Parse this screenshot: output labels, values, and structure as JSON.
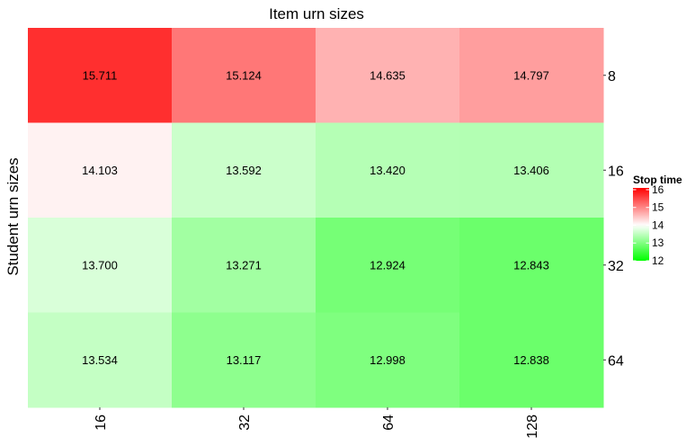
{
  "chart_data": {
    "type": "heatmap",
    "title": "Item urn sizes",
    "xlabel": "",
    "ylabel": "Student urn sizes",
    "x_categories": [
      "16",
      "32",
      "64",
      "128"
    ],
    "y_categories": [
      "8",
      "16",
      "32",
      "64"
    ],
    "values": [
      [
        15.711,
        15.124,
        14.635,
        14.797
      ],
      [
        14.103,
        13.592,
        13.42,
        13.406
      ],
      [
        13.7,
        13.271,
        12.924,
        12.843
      ],
      [
        13.534,
        13.117,
        12.998,
        12.838
      ]
    ],
    "value_labels": [
      [
        "15.711",
        "15.124",
        "14.635",
        "14.797"
      ],
      [
        "14.103",
        "13.592",
        "13.420",
        "13.406"
      ],
      [
        "13.700",
        "13.271",
        "12.924",
        "12.843"
      ],
      [
        "13.534",
        "13.117",
        "12.998",
        "12.838"
      ]
    ],
    "color_scale": {
      "low": "#00ff00",
      "mid": "#ffffff",
      "high": "#ff0000",
      "midpoint": 14,
      "range": [
        12,
        16.1
      ]
    },
    "legend": {
      "title": "Stop time",
      "ticks": [
        "12",
        "13",
        "14",
        "15",
        "16"
      ],
      "position": "right"
    },
    "x_axis_position": "bottom",
    "y_axis_position": "right",
    "grid": false
  }
}
